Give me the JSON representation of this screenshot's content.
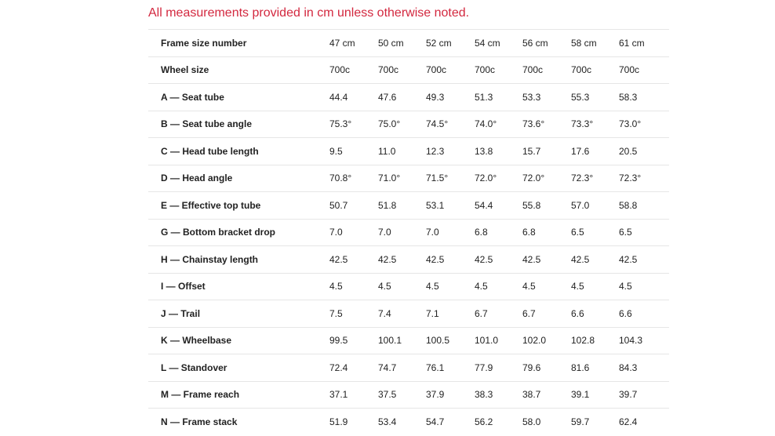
{
  "note": "All measurements provided in cm unless otherwise noted.",
  "table": {
    "rows": [
      {
        "label": "Frame size number",
        "values": [
          "47 cm",
          "50 cm",
          "52 cm",
          "54 cm",
          "56 cm",
          "58 cm",
          "61 cm"
        ]
      },
      {
        "label": "Wheel size",
        "values": [
          "700c",
          "700c",
          "700c",
          "700c",
          "700c",
          "700c",
          "700c"
        ]
      },
      {
        "label": "A — Seat tube",
        "values": [
          "44.4",
          "47.6",
          "49.3",
          "51.3",
          "53.3",
          "55.3",
          "58.3"
        ]
      },
      {
        "label": "B — Seat tube angle",
        "values": [
          "75.3°",
          "75.0°",
          "74.5°",
          "74.0°",
          "73.6°",
          "73.3°",
          "73.0°"
        ]
      },
      {
        "label": "C — Head tube length",
        "values": [
          "9.5",
          "11.0",
          "12.3",
          "13.8",
          "15.7",
          "17.6",
          "20.5"
        ]
      },
      {
        "label": "D — Head angle",
        "values": [
          "70.8°",
          "71.0°",
          "71.5°",
          "72.0°",
          "72.0°",
          "72.3°",
          "72.3°"
        ]
      },
      {
        "label": "E — Effective top tube",
        "values": [
          "50.7",
          "51.8",
          "53.1",
          "54.4",
          "55.8",
          "57.0",
          "58.8"
        ]
      },
      {
        "label": "G — Bottom bracket drop",
        "values": [
          "7.0",
          "7.0",
          "7.0",
          "6.8",
          "6.8",
          "6.5",
          "6.5"
        ]
      },
      {
        "label": "H — Chainstay length",
        "values": [
          "42.5",
          "42.5",
          "42.5",
          "42.5",
          "42.5",
          "42.5",
          "42.5"
        ]
      },
      {
        "label": "I — Offset",
        "values": [
          "4.5",
          "4.5",
          "4.5",
          "4.5",
          "4.5",
          "4.5",
          "4.5"
        ]
      },
      {
        "label": "J — Trail",
        "values": [
          "7.5",
          "7.4",
          "7.1",
          "6.7",
          "6.7",
          "6.6",
          "6.6"
        ]
      },
      {
        "label": "K — Wheelbase",
        "values": [
          "99.5",
          "100.1",
          "100.5",
          "101.0",
          "102.0",
          "102.8",
          "104.3"
        ]
      },
      {
        "label": "L — Standover",
        "values": [
          "72.4",
          "74.7",
          "76.1",
          "77.9",
          "79.6",
          "81.6",
          "84.3"
        ]
      },
      {
        "label": "M — Frame reach",
        "values": [
          "37.1",
          "37.5",
          "37.9",
          "38.3",
          "38.7",
          "39.1",
          "39.7"
        ]
      },
      {
        "label": "N — Frame stack",
        "values": [
          "51.9",
          "53.4",
          "54.7",
          "56.2",
          "58.0",
          "59.7",
          "62.4"
        ]
      }
    ]
  }
}
